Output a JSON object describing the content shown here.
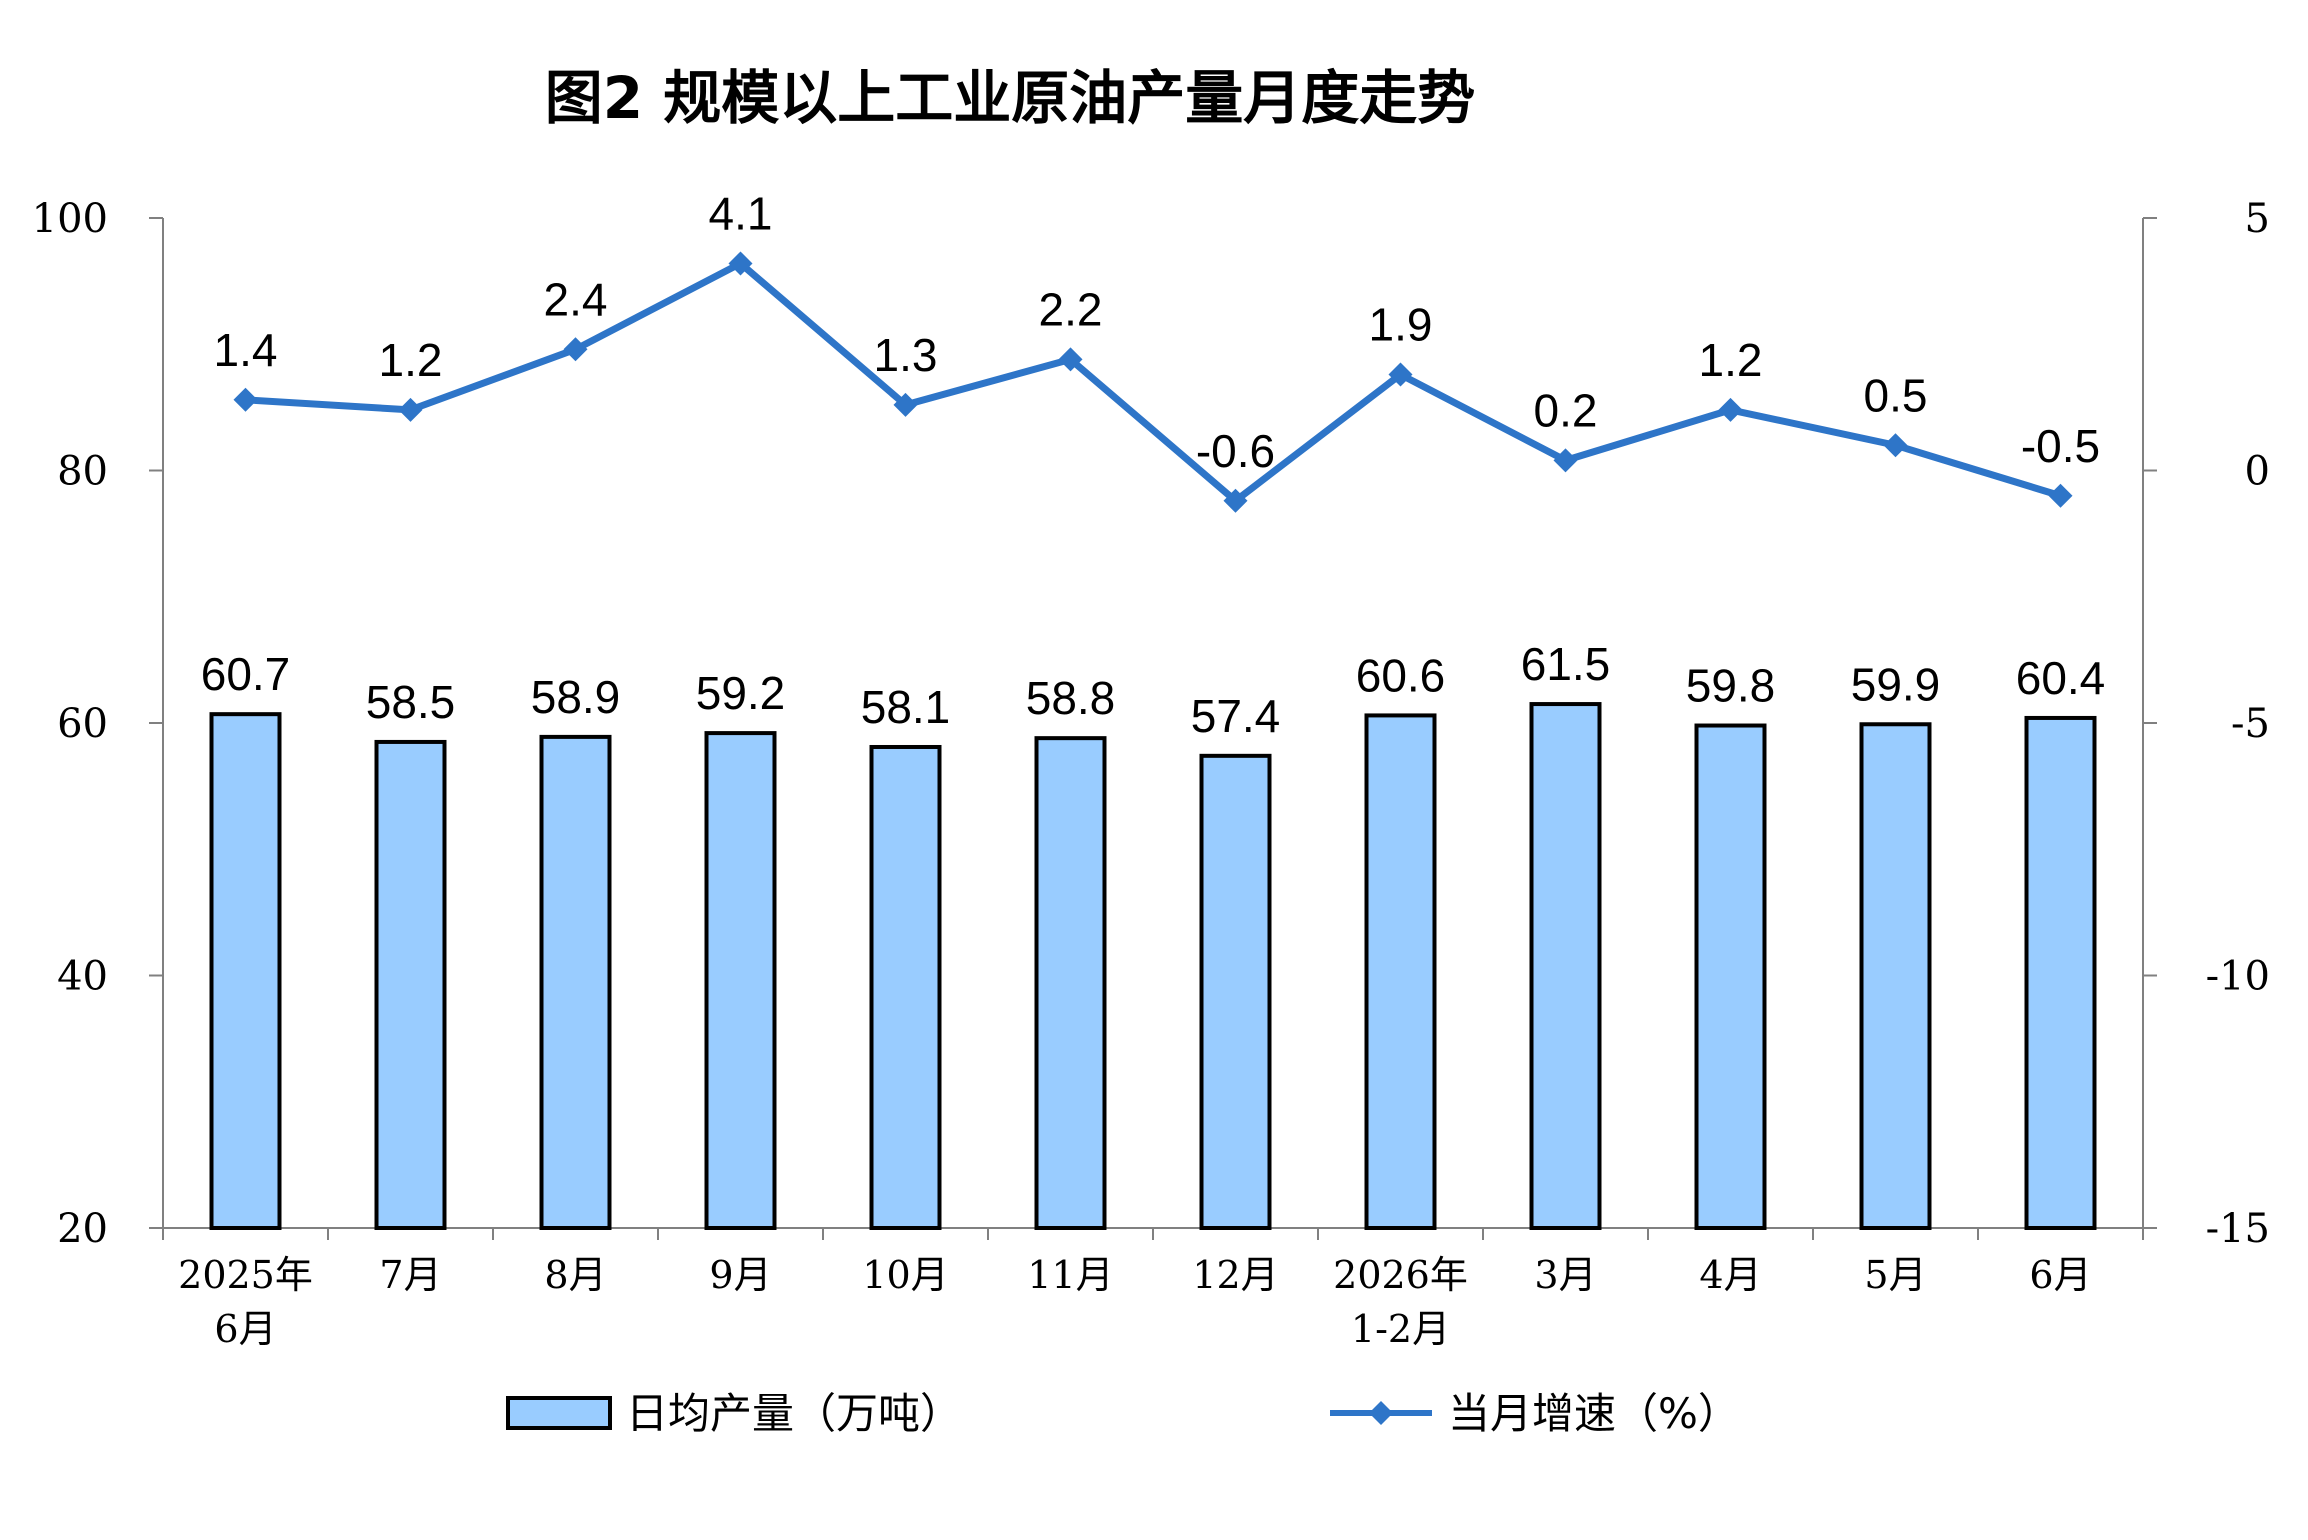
{
  "colors": {
    "bar_fill": "#99CCFF",
    "bar_stroke": "#000000",
    "line": "#2E75C8",
    "axis": "#808080"
  },
  "chart_data": {
    "type": "bar",
    "title": "图2 规模以上工业原油产量月度走势",
    "categories": [
      [
        "2025年",
        "6月"
      ],
      [
        "7月"
      ],
      [
        "8月"
      ],
      [
        "9月"
      ],
      [
        "10月"
      ],
      [
        "11月"
      ],
      [
        "12月"
      ],
      [
        "2026年",
        "1-2月"
      ],
      [
        "3月"
      ],
      [
        "4月"
      ],
      [
        "5月"
      ],
      [
        "6月"
      ]
    ],
    "series": [
      {
        "name": "日均产量（万吨）",
        "type": "bar",
        "axis": "left",
        "values": [
          60.7,
          58.5,
          58.9,
          59.2,
          58.1,
          58.8,
          57.4,
          60.6,
          61.5,
          59.8,
          59.9,
          60.4
        ],
        "labels": [
          "60.7",
          "58.5",
          "58.9",
          "59.2",
          "58.1",
          "58.8",
          "57.4",
          "60.6",
          "61.5",
          "59.8",
          "59.9",
          "60.4"
        ]
      },
      {
        "name": "当月增速（%）",
        "type": "line",
        "axis": "right",
        "values": [
          1.4,
          1.2,
          2.4,
          4.1,
          1.3,
          2.2,
          -0.6,
          1.9,
          0.2,
          1.2,
          0.5,
          -0.5
        ],
        "labels": [
          "1.4",
          "1.2",
          "2.4",
          "4.1",
          "1.3",
          "2.2",
          "-0.6",
          "1.9",
          "0.2",
          "1.2",
          "0.5",
          "-0.5"
        ]
      }
    ],
    "y_left": {
      "ylim": [
        20,
        100
      ],
      "ticks": [
        "100",
        "80",
        "60",
        "40",
        "20"
      ]
    },
    "y_right": {
      "ylim": [
        -15,
        5
      ],
      "ticks": [
        "5",
        "0",
        "-5",
        "-10",
        "-15"
      ]
    },
    "grid": false,
    "legend_position": "bottom"
  }
}
